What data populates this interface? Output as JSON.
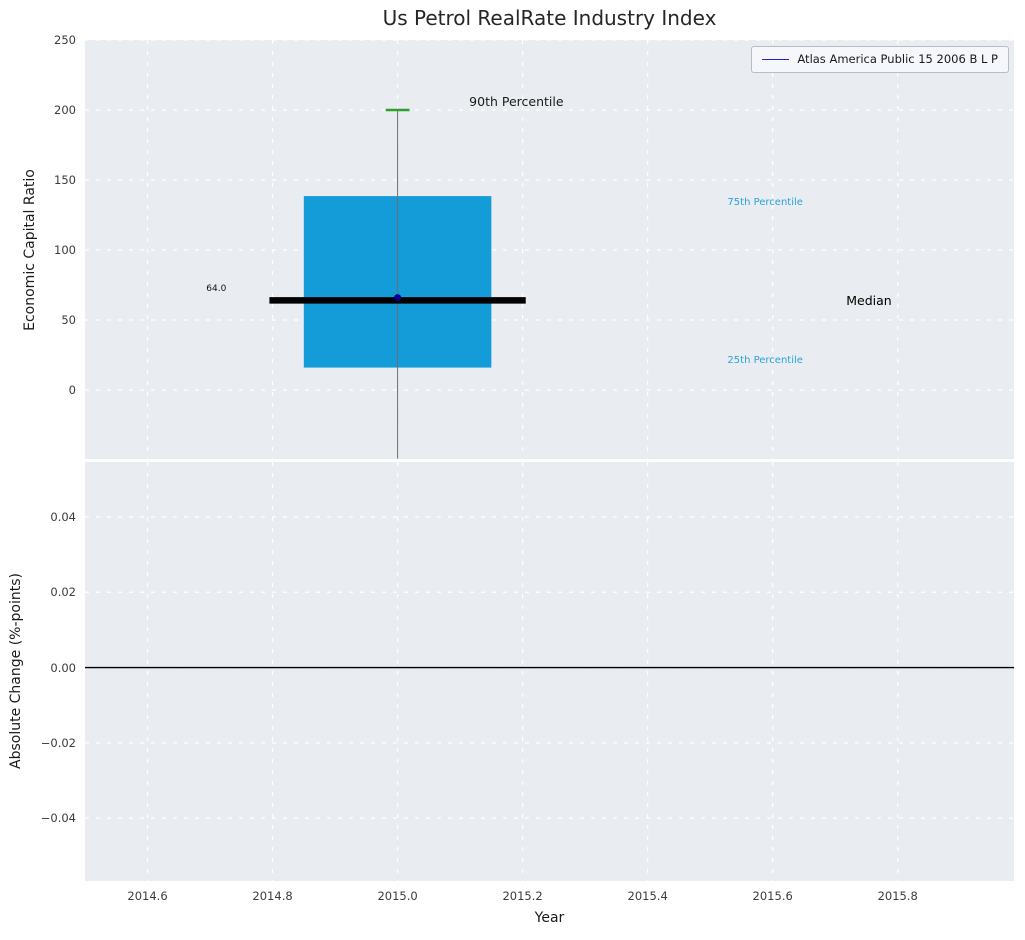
{
  "page": {
    "title": "Us Petrol RealRate Industry Index"
  },
  "legend": {
    "label": "Atlas America Public 15 2006 B L P",
    "line_color": "#2222cd"
  },
  "colors": {
    "plot_bg": "#e9ecf0",
    "grid": "#ffffff",
    "box_fill": "#149cd8",
    "median": "#000000",
    "whisker": "#6e6e6e",
    "cap_90": "#2ca02c",
    "marker": "#00008b",
    "zero_line": "#000000",
    "percentile_label": "#2aa3d8",
    "text": "#262626"
  },
  "axes": {
    "x": {
      "label": "Year",
      "lim": [
        2014.5,
        2015.986
      ],
      "ticks": [
        2014.6,
        2014.8,
        2015.0,
        2015.2,
        2015.4,
        2015.6,
        2015.8
      ],
      "tick_labels": [
        "2014.6",
        "2014.8",
        "2015.0",
        "2015.2",
        "2015.4",
        "2015.6",
        "2015.8"
      ]
    },
    "top_y": {
      "label": "Economic Capital Ratio",
      "lim": [
        -49.3,
        250
      ],
      "ticks": [
        0,
        50,
        100,
        150,
        200,
        250
      ],
      "tick_labels": [
        "0",
        "50",
        "100",
        "150",
        "200",
        "250"
      ]
    },
    "bottom_y": {
      "label": "Absolute Change (%-points)",
      "lim": [
        -0.0567,
        0.0546
      ],
      "ticks": [
        -0.04,
        -0.02,
        0.0,
        0.02,
        0.04
      ],
      "tick_labels": [
        "−0.04",
        "−0.02",
        "0.00",
        "0.02",
        "0.04"
      ]
    }
  },
  "chart_data": [
    {
      "type": "boxplot",
      "title": "Us Petrol RealRate Industry Index",
      "xlabel": "Year",
      "ylabel": "Economic Capital Ratio",
      "ylim": [
        -49.3,
        250
      ],
      "grid": true,
      "legend_position": "upper right",
      "series": [
        {
          "name": "Atlas America Public 15 2006 B L P",
          "x": 2015.0,
          "value": 66
        }
      ],
      "box": {
        "x": 2015.0,
        "p25": 16,
        "median": 64,
        "p75": 138.5,
        "p90": 200,
        "whisker_low": -49,
        "box_halfwidth": 0.15,
        "median_halfwidth": 0.205,
        "cap_halfwidth": 0.019
      },
      "annotations": [
        {
          "text": "90th Percentile",
          "x": 2015.19,
          "y": 206,
          "color": "#1a1a1a",
          "size": 12.5
        },
        {
          "text": "75th Percentile",
          "x": 2015.588,
          "y": 134,
          "color": "#2aa3d8",
          "size": 10
        },
        {
          "text": "Median",
          "x": 2015.754,
          "y": 64,
          "color": "#000000",
          "size": 12.5
        },
        {
          "text": "25th Percentile",
          "x": 2015.588,
          "y": 21,
          "color": "#2aa3d8",
          "size": 10
        },
        {
          "text": "64.0",
          "x": 2014.71,
          "y": 72,
          "color": "#111111",
          "size": 9
        }
      ]
    },
    {
      "type": "line",
      "xlabel": "Year",
      "ylabel": "Absolute Change (%-points)",
      "ylim": [
        -0.0567,
        0.0546
      ],
      "grid": true,
      "zero_line": 0.0,
      "series": []
    }
  ]
}
